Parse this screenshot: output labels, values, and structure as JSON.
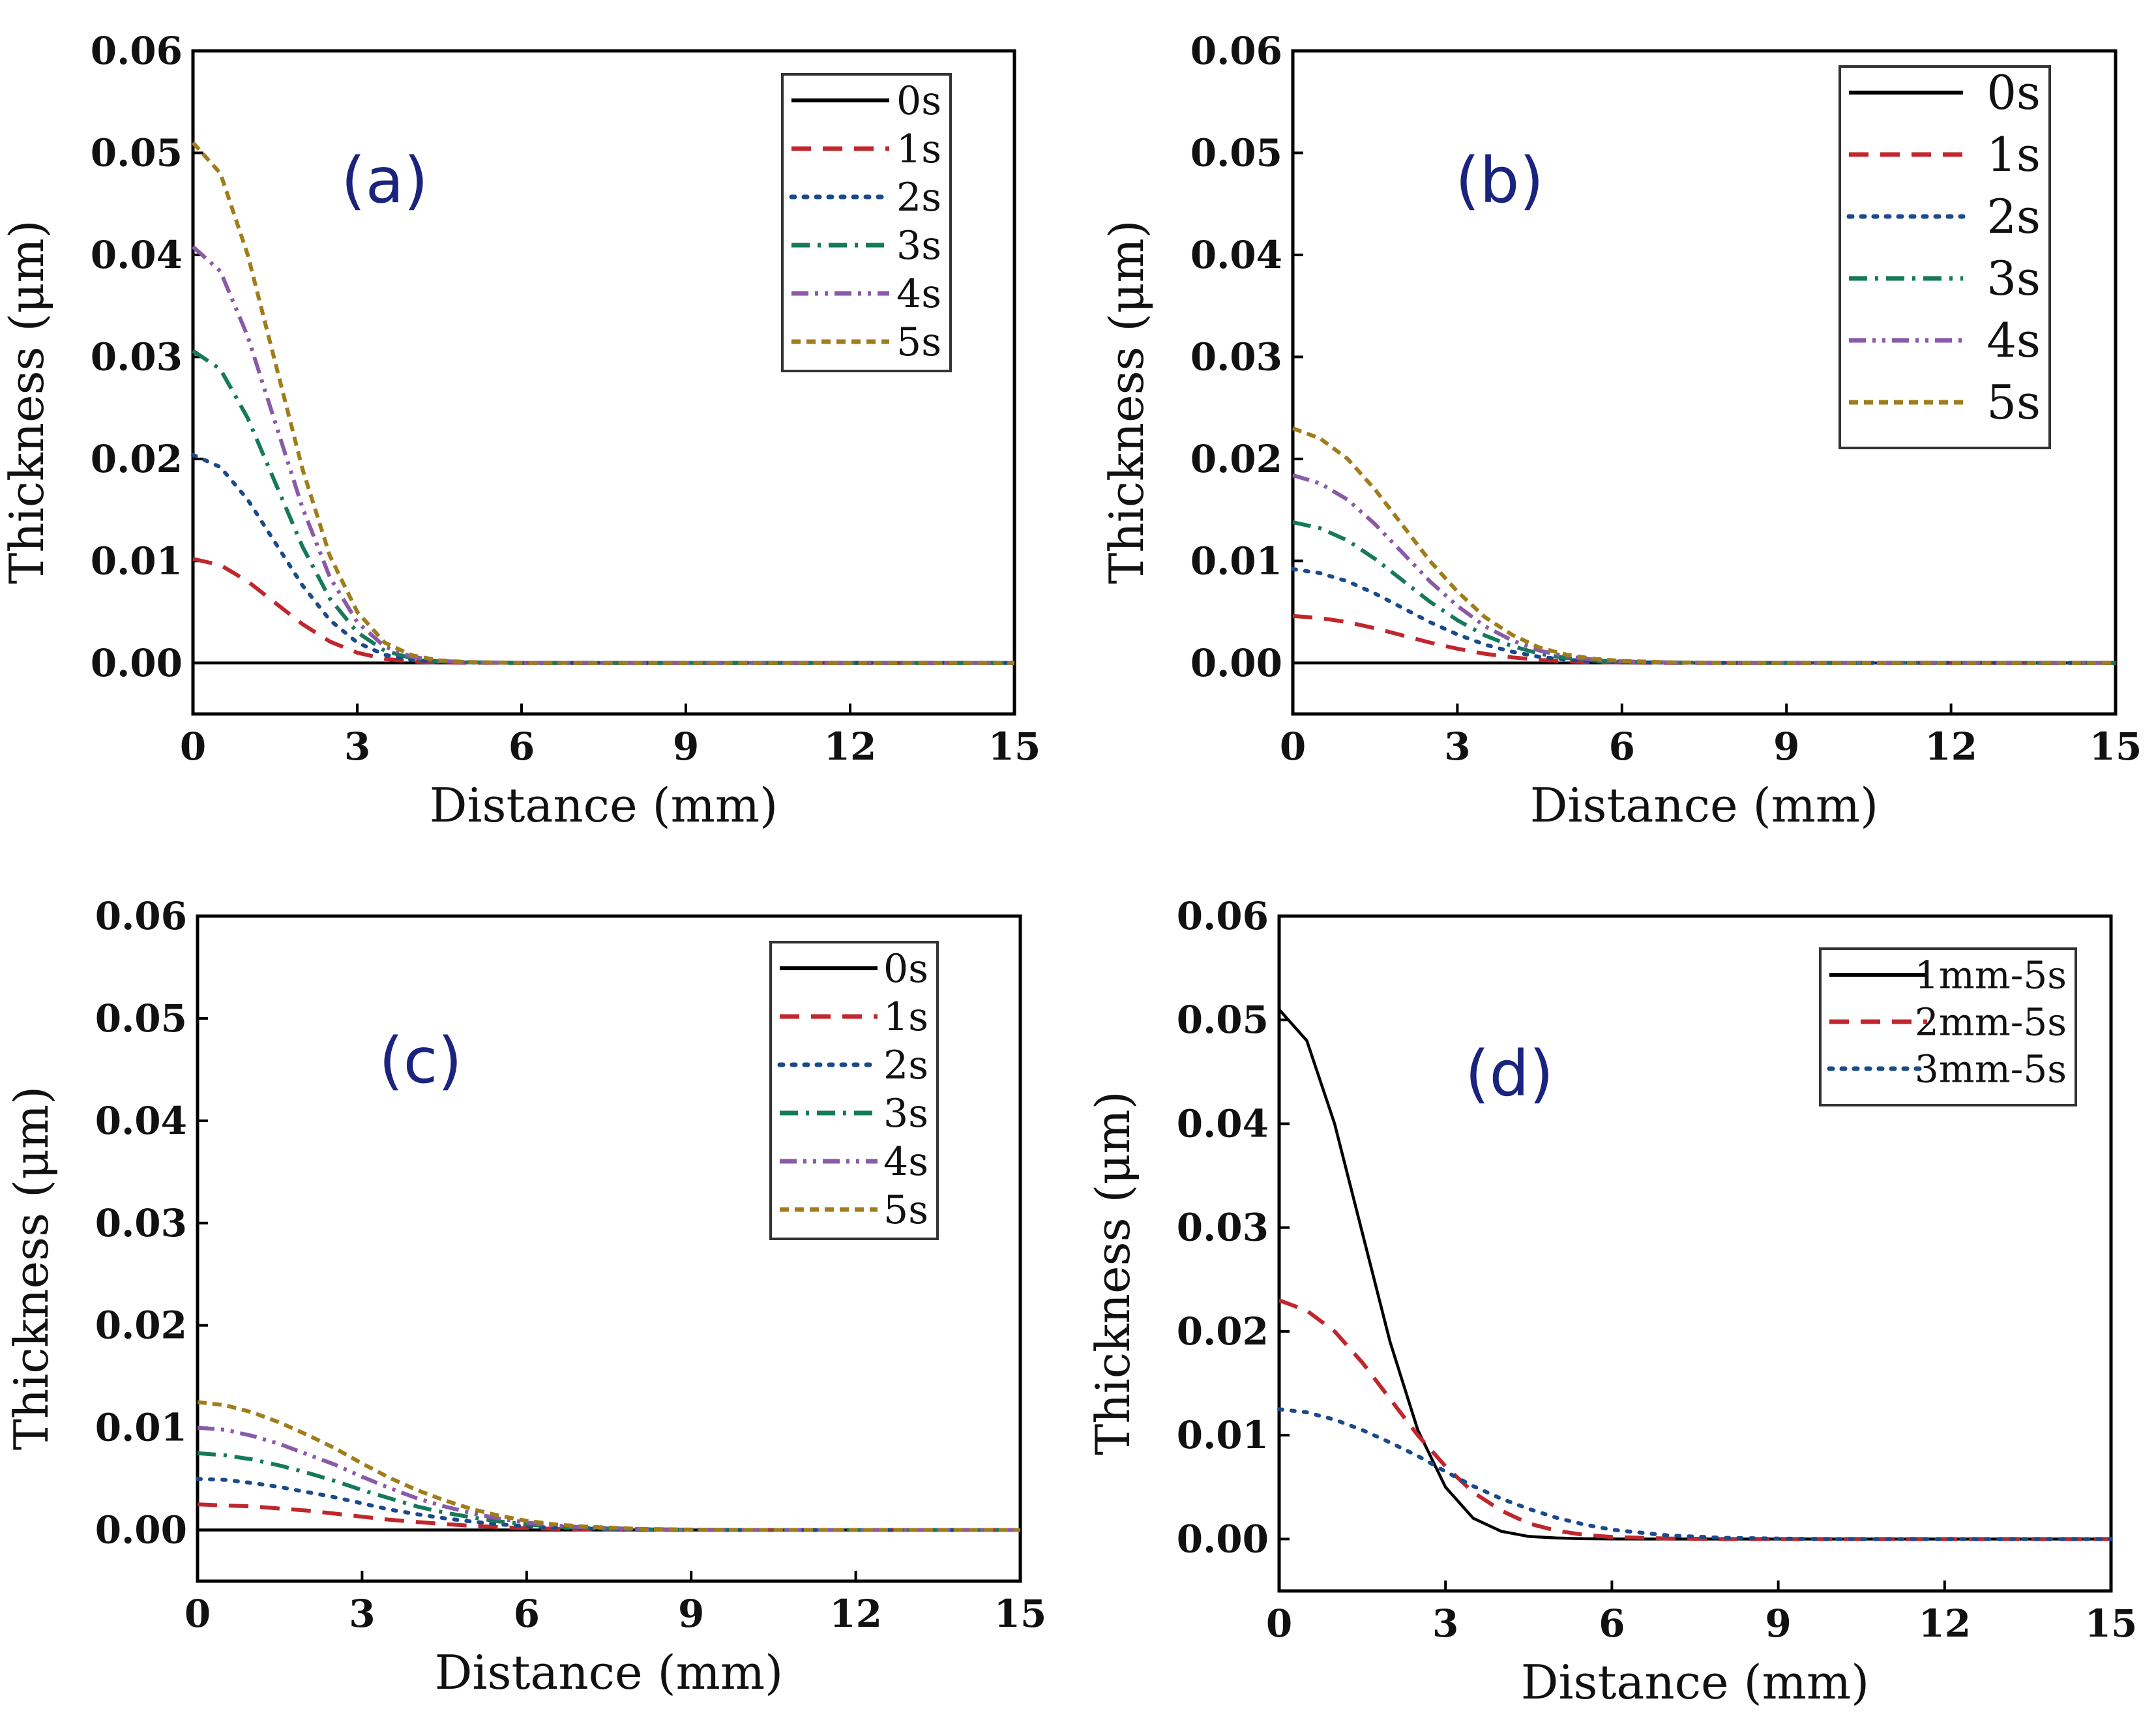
{
  "colors": {
    "0s": "#000000",
    "1s": "#c0272d",
    "2s": "#1a4a8a",
    "3s": "#167a5a",
    "4s": "#8a5aa8",
    "5s": "#a07d1a"
  },
  "chart_data": [
    {
      "type": "line",
      "panel_label": "(a)",
      "xlabel": "Distance (mm)",
      "ylabel": "Thickness (μm)",
      "xlim": [
        0,
        15
      ],
      "ylim": [
        -0.005,
        0.06
      ],
      "xticks": [
        0,
        3,
        6,
        9,
        12,
        15
      ],
      "xtick_labels": [
        "0",
        "3",
        "6",
        "9",
        "12",
        "15"
      ],
      "yticks": [
        0,
        0.01,
        0.02,
        0.03,
        0.04,
        0.05,
        0.06
      ],
      "ytick_labels": [
        "0.00",
        "0.01",
        "0.02",
        "0.03",
        "0.04",
        "0.05",
        "0.06"
      ],
      "x": [
        0,
        0.5,
        1,
        1.5,
        2,
        2.5,
        3,
        3.5,
        4,
        4.5,
        5,
        6,
        7,
        8,
        9,
        10,
        11,
        12,
        13,
        14,
        15
      ],
      "series": [
        {
          "name": "0s",
          "style": "solid",
          "values": [
            0,
            0,
            0,
            0,
            0,
            0,
            0,
            0,
            0,
            0,
            0,
            0,
            0,
            0,
            0,
            0,
            0,
            0,
            0,
            0,
            0
          ]
        },
        {
          "name": "1s",
          "style": "dash",
          "values": [
            0.0102,
            0.0096,
            0.008,
            0.0059,
            0.0038,
            0.0021,
            0.001,
            0.0004,
            0.00015,
            5e-05,
            2e-05,
            0,
            0,
            0,
            0,
            0,
            0,
            0,
            0,
            0,
            0
          ]
        },
        {
          "name": "2s",
          "style": "dot",
          "values": [
            0.0204,
            0.0192,
            0.016,
            0.0118,
            0.0076,
            0.0042,
            0.002,
            0.0008,
            0.0003,
            0.0001,
            4e-05,
            0,
            0,
            0,
            0,
            0,
            0,
            0,
            0,
            0,
            0
          ]
        },
        {
          "name": "3s",
          "style": "dashdot",
          "values": [
            0.0306,
            0.0288,
            0.024,
            0.0177,
            0.0114,
            0.0063,
            0.003,
            0.0012,
            0.00045,
            0.00015,
            6e-05,
            0,
            0,
            0,
            0,
            0,
            0,
            0,
            0,
            0,
            0
          ]
        },
        {
          "name": "4s",
          "style": "dashdotdot",
          "values": [
            0.0408,
            0.0384,
            0.032,
            0.0236,
            0.0152,
            0.0084,
            0.004,
            0.0016,
            0.0006,
            0.0002,
            8e-05,
            0,
            0,
            0,
            0,
            0,
            0,
            0,
            0,
            0,
            0
          ]
        },
        {
          "name": "5s",
          "style": "shortdash",
          "values": [
            0.051,
            0.048,
            0.04,
            0.0295,
            0.019,
            0.0105,
            0.005,
            0.002,
            0.00075,
            0.00025,
            0.0001,
            0,
            0,
            0,
            0,
            0,
            0,
            0,
            0,
            0,
            0
          ]
        }
      ],
      "legend": [
        "0s",
        "1s",
        "2s",
        "3s",
        "4s",
        "5s"
      ],
      "legend_position": "top-right",
      "grid": false
    },
    {
      "type": "line",
      "panel_label": "(b)",
      "xlabel": "Distance (mm)",
      "ylabel": "Thickness (μm)",
      "xlim": [
        0,
        15
      ],
      "ylim": [
        -0.005,
        0.06
      ],
      "xticks": [
        0,
        3,
        6,
        9,
        12,
        15
      ],
      "xtick_labels": [
        "0",
        "3",
        "6",
        "9",
        "12",
        "15"
      ],
      "yticks": [
        0,
        0.01,
        0.02,
        0.03,
        0.04,
        0.05,
        0.06
      ],
      "ytick_labels": [
        "0.00",
        "0.01",
        "0.02",
        "0.03",
        "0.04",
        "0.05",
        "0.06"
      ],
      "x": [
        0,
        0.5,
        1,
        1.5,
        2,
        2.5,
        3,
        3.5,
        4,
        4.5,
        5,
        5.5,
        6,
        7,
        8,
        9,
        10,
        11,
        12,
        13,
        14,
        15
      ],
      "series": [
        {
          "name": "0s",
          "style": "solid",
          "values": [
            0,
            0,
            0,
            0,
            0,
            0,
            0,
            0,
            0,
            0,
            0,
            0,
            0,
            0,
            0,
            0,
            0,
            0,
            0,
            0,
            0,
            0
          ]
        },
        {
          "name": "1s",
          "style": "dash",
          "values": [
            0.0046,
            0.0044,
            0.004,
            0.0034,
            0.0027,
            0.002,
            0.0014,
            0.0009,
            0.00055,
            0.0003,
            0.00016,
            8e-05,
            4e-05,
            0,
            0,
            0,
            0,
            0,
            0,
            0,
            0,
            0
          ]
        },
        {
          "name": "2s",
          "style": "dot",
          "values": [
            0.0092,
            0.0088,
            0.008,
            0.0068,
            0.0054,
            0.004,
            0.0028,
            0.0018,
            0.0011,
            0.0006,
            0.00032,
            0.00016,
            8e-05,
            2e-05,
            0,
            0,
            0,
            0,
            0,
            0,
            0,
            0
          ]
        },
        {
          "name": "3s",
          "style": "dashdot",
          "values": [
            0.0138,
            0.0132,
            0.012,
            0.0102,
            0.0081,
            0.006,
            0.0042,
            0.0027,
            0.00165,
            0.0009,
            0.00048,
            0.00024,
            0.00012,
            3e-05,
            0,
            0,
            0,
            0,
            0,
            0,
            0,
            0
          ]
        },
        {
          "name": "4s",
          "style": "dashdotdot",
          "values": [
            0.0184,
            0.0176,
            0.016,
            0.0136,
            0.0108,
            0.008,
            0.0056,
            0.0036,
            0.0022,
            0.0012,
            0.00064,
            0.00032,
            0.00016,
            4e-05,
            0,
            0,
            0,
            0,
            0,
            0,
            0,
            0
          ]
        },
        {
          "name": "5s",
          "style": "shortdash",
          "values": [
            0.023,
            0.022,
            0.02,
            0.017,
            0.0135,
            0.01,
            0.007,
            0.0045,
            0.00275,
            0.0015,
            0.0008,
            0.0004,
            0.0002,
            5e-05,
            0,
            0,
            0,
            0,
            0,
            0,
            0,
            0
          ]
        }
      ],
      "legend": [
        "0s",
        "1s",
        "2s",
        "3s",
        "4s",
        "5s"
      ],
      "legend_position": "top-right",
      "grid": false
    },
    {
      "type": "line",
      "panel_label": "(c)",
      "xlabel": "Distance (mm)",
      "ylabel": "Thickness (μm)",
      "xlim": [
        0,
        15
      ],
      "ylim": [
        -0.005,
        0.06
      ],
      "xticks": [
        0,
        3,
        6,
        9,
        12,
        15
      ],
      "xtick_labels": [
        "0",
        "3",
        "6",
        "9",
        "12",
        "15"
      ],
      "yticks": [
        0,
        0.01,
        0.02,
        0.03,
        0.04,
        0.05,
        0.06
      ],
      "ytick_labels": [
        "0.00",
        "0.01",
        "0.02",
        "0.03",
        "0.04",
        "0.05",
        "0.06"
      ],
      "x": [
        0,
        0.5,
        1,
        1.5,
        2,
        2.5,
        3,
        3.5,
        4,
        4.5,
        5,
        5.5,
        6,
        6.5,
        7,
        8,
        9,
        10,
        11,
        12,
        13,
        14,
        15
      ],
      "series": [
        {
          "name": "0s",
          "style": "solid",
          "values": [
            0,
            0,
            0,
            0,
            0,
            0,
            0,
            0,
            0,
            0,
            0,
            0,
            0,
            0,
            0,
            0,
            0,
            0,
            0,
            0,
            0,
            0,
            0
          ]
        },
        {
          "name": "1s",
          "style": "dash",
          "values": [
            0.0025,
            0.0024,
            0.0023,
            0.0021,
            0.0019,
            0.0016,
            0.0013,
            0.001,
            0.00078,
            0.00058,
            0.00041,
            0.00028,
            0.00018,
            0.00011,
            7e-05,
            2e-05,
            0,
            0,
            0,
            0,
            0,
            0,
            0
          ]
        },
        {
          "name": "2s",
          "style": "dot",
          "values": [
            0.005,
            0.0049,
            0.0046,
            0.0042,
            0.0037,
            0.0032,
            0.0026,
            0.002,
            0.00155,
            0.00115,
            0.00082,
            0.00056,
            0.00036,
            0.00023,
            0.00014,
            5e-05,
            1e-05,
            0,
            0,
            0,
            0,
            0,
            0
          ]
        },
        {
          "name": "3s",
          "style": "dashdot",
          "values": [
            0.0075,
            0.0073,
            0.0069,
            0.0063,
            0.0056,
            0.0048,
            0.0039,
            0.0031,
            0.0023,
            0.0017,
            0.00123,
            0.00084,
            0.00054,
            0.00034,
            0.00021,
            7e-05,
            2e-05,
            0,
            0,
            0,
            0,
            0,
            0
          ]
        },
        {
          "name": "4s",
          "style": "dashdotdot",
          "values": [
            0.01,
            0.0098,
            0.0092,
            0.0084,
            0.0074,
            0.0064,
            0.0052,
            0.0041,
            0.0031,
            0.0023,
            0.00164,
            0.00112,
            0.00072,
            0.00045,
            0.00028,
            0.0001,
            3e-05,
            0,
            0,
            0,
            0,
            0,
            0
          ]
        },
        {
          "name": "5s",
          "style": "shortdash",
          "values": [
            0.0125,
            0.0122,
            0.0115,
            0.0105,
            0.0093,
            0.008,
            0.0065,
            0.0051,
            0.0039,
            0.0029,
            0.00205,
            0.0014,
            0.0009,
            0.00056,
            0.00035,
            0.00012,
            4e-05,
            0,
            0,
            0,
            0,
            0,
            0
          ]
        }
      ],
      "legend": [
        "0s",
        "1s",
        "2s",
        "3s",
        "4s",
        "5s"
      ],
      "legend_position": "top-right",
      "grid": false
    },
    {
      "type": "line",
      "panel_label": "(d)",
      "xlabel": "Distance (mm)",
      "ylabel": "Thickness (μm)",
      "xlim": [
        0,
        15
      ],
      "ylim": [
        -0.005,
        0.06
      ],
      "xticks": [
        0,
        3,
        6,
        9,
        12,
        15
      ],
      "xtick_labels": [
        "0",
        "3",
        "6",
        "9",
        "12",
        "15"
      ],
      "yticks": [
        0,
        0.01,
        0.02,
        0.03,
        0.04,
        0.05,
        0.06
      ],
      "ytick_labels": [
        "0.00",
        "0.01",
        "0.02",
        "0.03",
        "0.04",
        "0.05",
        "0.06"
      ],
      "x": [
        0,
        0.5,
        1,
        1.5,
        2,
        2.5,
        3,
        3.5,
        4,
        4.5,
        5,
        5.5,
        6,
        7,
        8,
        9,
        10,
        11,
        12,
        13,
        14,
        15
      ],
      "series": [
        {
          "name": "1mm-5s",
          "style": "solid",
          "color": "#000000",
          "values": [
            0.051,
            0.048,
            0.04,
            0.0295,
            0.019,
            0.0105,
            0.005,
            0.002,
            0.00075,
            0.00025,
            0.0001,
            3e-05,
            1e-05,
            0,
            0,
            0,
            0,
            0,
            0,
            0,
            0,
            0
          ]
        },
        {
          "name": "2mm-5s",
          "style": "dash",
          "color": "#c0272d",
          "values": [
            0.023,
            0.022,
            0.02,
            0.017,
            0.0135,
            0.01,
            0.007,
            0.0045,
            0.00275,
            0.0015,
            0.0008,
            0.0004,
            0.0002,
            5e-05,
            0,
            0,
            0,
            0,
            0,
            0,
            0,
            0
          ]
        },
        {
          "name": "3mm-5s",
          "style": "dot",
          "color": "#1a4a8a",
          "values": [
            0.0125,
            0.0122,
            0.0115,
            0.0105,
            0.0093,
            0.008,
            0.0065,
            0.0051,
            0.0039,
            0.0029,
            0.00205,
            0.0014,
            0.0009,
            0.00035,
            0.00012,
            4e-05,
            0,
            0,
            0,
            0,
            0,
            0
          ]
        }
      ],
      "legend": [
        "1mm-5s",
        "2mm-5s",
        "3mm-5s"
      ],
      "legend_position": "top-right",
      "grid": false
    }
  ]
}
